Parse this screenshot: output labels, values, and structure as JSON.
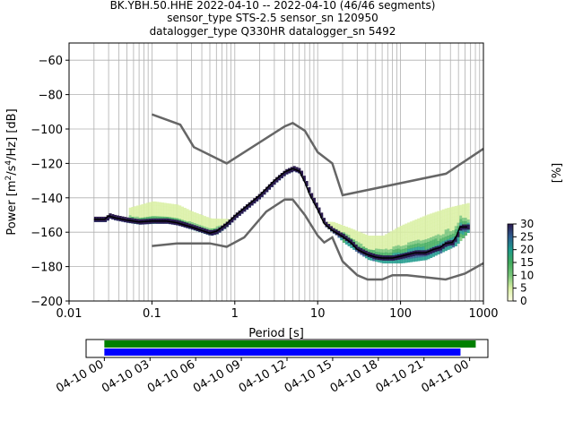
{
  "chart_data": {
    "type": "heatmap",
    "title_lines": [
      "BK.YBH.50.HHE   2022-04-10 -- 2022-04-10  (46/46 segments)",
      "sensor_type STS-2.5 sensor_sn 120950",
      "datalogger_type Q330HR datalogger_sn 5492"
    ],
    "xlabel": "Period [s]",
    "ylabel": "Power [m²/s⁴/Hz] [dB]",
    "ylabel_parts": {
      "prefix": "Power [m",
      "sup1": "2",
      "mid": "/s",
      "sup2": "4",
      "suffix": "/Hz] [dB]"
    },
    "x_scale": "log",
    "xlim": [
      0.01,
      1000
    ],
    "ylim": [
      -200,
      -50
    ],
    "x_ticks": [
      {
        "value": 0.01,
        "label": "0.01"
      },
      {
        "value": 0.1,
        "label": "0.1"
      },
      {
        "value": 1,
        "label": "1"
      },
      {
        "value": 10,
        "label": "10"
      },
      {
        "value": 100,
        "label": "100"
      },
      {
        "value": 1000,
        "label": "1000"
      }
    ],
    "y_ticks": [
      {
        "value": -60,
        "label": "−60"
      },
      {
        "value": -80,
        "label": "−80"
      },
      {
        "value": -100,
        "label": "−100"
      },
      {
        "value": -120,
        "label": "−120"
      },
      {
        "value": -140,
        "label": "−140"
      },
      {
        "value": -160,
        "label": "−160"
      },
      {
        "value": -180,
        "label": "−180"
      },
      {
        "value": -200,
        "label": "−200"
      }
    ],
    "grid": true,
    "colorbar": {
      "label": "[%]",
      "range": [
        0,
        30
      ],
      "ticks": [
        {
          "value": 0,
          "label": "0"
        },
        {
          "value": 5,
          "label": "5"
        },
        {
          "value": 10,
          "label": "10"
        },
        {
          "value": 15,
          "label": "15"
        },
        {
          "value": 20,
          "label": "20"
        },
        {
          "value": 25,
          "label": "25"
        },
        {
          "value": 30,
          "label": "30"
        }
      ],
      "colors": [
        "#ffffe5",
        "#d9f0a3",
        "#78c679",
        "#41ab5d",
        "#1d9a8c",
        "#2c5c8e",
        "#2b1a4f"
      ]
    },
    "noise_model_high": [
      [
        0.1,
        -91.5
      ],
      [
        0.22,
        -97.5
      ],
      [
        0.32,
        -110.5
      ],
      [
        0.8,
        -120
      ],
      [
        4,
        -98.5
      ],
      [
        5,
        -96.5
      ],
      [
        7,
        -101
      ],
      [
        10,
        -113.5
      ],
      [
        15,
        -120
      ],
      [
        20,
        -138.5
      ],
      [
        354,
        -126
      ],
      [
        1000,
        -111.5
      ]
    ],
    "noise_model_low": [
      [
        0.1,
        -168
      ],
      [
        0.2,
        -166.5
      ],
      [
        0.5,
        -166.5
      ],
      [
        0.8,
        -168.5
      ],
      [
        1.3,
        -163
      ],
      [
        2.4,
        -148
      ],
      [
        4,
        -141
      ],
      [
        5,
        -141
      ],
      [
        7,
        -150
      ],
      [
        10,
        -162
      ],
      [
        12,
        -166
      ],
      [
        15,
        -163
      ],
      [
        20,
        -177
      ],
      [
        30,
        -185
      ],
      [
        40,
        -187.5
      ],
      [
        60,
        -187.5
      ],
      [
        80,
        -185
      ],
      [
        120,
        -185
      ],
      [
        350,
        -187.5
      ],
      [
        600,
        -184
      ],
      [
        1000,
        -178
      ]
    ],
    "mode_curve": [
      [
        0.02,
        -152.5
      ],
      [
        0.027,
        -152.5
      ],
      [
        0.03,
        -150.5
      ],
      [
        0.035,
        -151.5
      ],
      [
        0.05,
        -153
      ],
      [
        0.07,
        -154
      ],
      [
        0.1,
        -153.5
      ],
      [
        0.15,
        -153.5
      ],
      [
        0.2,
        -154.5
      ],
      [
        0.3,
        -157
      ],
      [
        0.4,
        -159
      ],
      [
        0.5,
        -160.5
      ],
      [
        0.6,
        -159.5
      ],
      [
        0.8,
        -155
      ],
      [
        1,
        -150.5
      ],
      [
        1.5,
        -143.5
      ],
      [
        2,
        -138.5
      ],
      [
        3,
        -130
      ],
      [
        4,
        -125
      ],
      [
        5,
        -123
      ],
      [
        6,
        -124.5
      ],
      [
        7,
        -131
      ],
      [
        8,
        -138
      ],
      [
        10,
        -147
      ],
      [
        12,
        -155
      ],
      [
        15,
        -159
      ],
      [
        20,
        -162.5
      ],
      [
        25,
        -166
      ],
      [
        30,
        -170
      ],
      [
        40,
        -173
      ],
      [
        50,
        -174.5
      ],
      [
        60,
        -175
      ],
      [
        80,
        -175
      ],
      [
        100,
        -174
      ],
      [
        150,
        -172
      ],
      [
        200,
        -172
      ],
      [
        250,
        -170
      ],
      [
        300,
        -169
      ],
      [
        350,
        -166.5
      ],
      [
        420,
        -166
      ],
      [
        470,
        -162.5
      ],
      [
        520,
        -157
      ],
      [
        600,
        -157
      ],
      [
        640,
        -157
      ]
    ],
    "lower_percentile_band": [
      [
        15,
        -160
      ],
      [
        20,
        -166
      ],
      [
        30,
        -172
      ],
      [
        40,
        -176
      ],
      [
        60,
        -178
      ],
      [
        100,
        -178
      ],
      [
        200,
        -176
      ],
      [
        300,
        -172
      ],
      [
        450,
        -168
      ],
      [
        640,
        -160
      ]
    ],
    "upper_percentile_band": [
      [
        0.05,
        -146
      ],
      [
        0.1,
        -142
      ],
      [
        0.2,
        -144
      ],
      [
        0.3,
        -148
      ],
      [
        0.5,
        -152
      ],
      [
        15,
        -154
      ],
      [
        25,
        -158
      ],
      [
        40,
        -162
      ],
      [
        60,
        -162
      ],
      [
        100,
        -156
      ],
      [
        200,
        -150
      ],
      [
        350,
        -146
      ],
      [
        640,
        -143
      ]
    ],
    "time_axis": {
      "ticks": [
        "04-10 00",
        "04-10 03",
        "04-10 06",
        "04-10 09",
        "04-10 12",
        "04-10 15",
        "04-10 18",
        "04-10 21",
        "04-11 00"
      ],
      "range_hours": [
        -1.2,
        25.2
      ],
      "bars": [
        {
          "color": "#008000",
          "start_hours": 0,
          "end_hours": 24.4
        },
        {
          "color": "#0000ff",
          "start_hours": 0,
          "end_hours": 23.4
        }
      ]
    }
  }
}
